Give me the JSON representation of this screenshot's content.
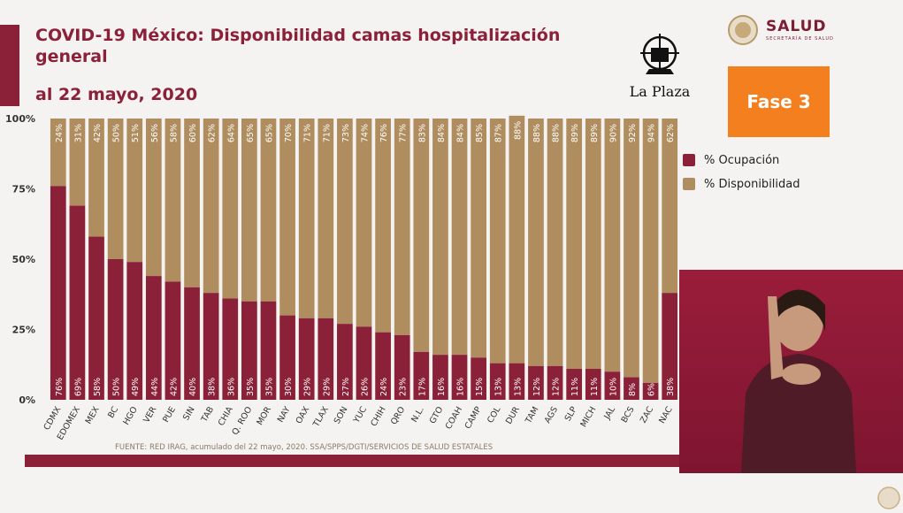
{
  "header": {
    "title": "COVID-19 México: Disponibilidad camas hospitalización general",
    "subtitle": "al 22 mayo, 2020"
  },
  "branding": {
    "salud_text": "SALUD",
    "salud_subtext": "SECRETARÍA DE SALUD",
    "la_plaza_text": "La Plaza",
    "phase_label": "Fase 3"
  },
  "colors": {
    "ocupacion": "#8b2139",
    "disponibilidad": "#b08d5e",
    "phase_badge": "#f47f1f"
  },
  "chart_data": {
    "type": "bar",
    "stacked": true,
    "percent": true,
    "categories": [
      "CDMX",
      "EDOMEX",
      "MEX",
      "BC",
      "HGO",
      "VER",
      "PUE",
      "SIN",
      "TAB",
      "CHIA",
      "Q. ROO",
      "MOR",
      "NAY",
      "OAX",
      "TLAX",
      "SON",
      "YUC",
      "CHIH",
      "QRO",
      "N.L.",
      "GTO",
      "COAH",
      "CAMP",
      "COL",
      "DUR",
      "TAM",
      "AGS",
      "SLP",
      "MICH",
      "JAL",
      "BCS",
      "ZAC",
      "NAC"
    ],
    "series": [
      {
        "name": "% Ocupación",
        "values": [
          76,
          69,
          58,
          50,
          49,
          44,
          42,
          40,
          38,
          36,
          35,
          35,
          30,
          29,
          29,
          27,
          26,
          24,
          23,
          17,
          16,
          16,
          15,
          13,
          13,
          12,
          12,
          11,
          11,
          10,
          8,
          6,
          38
        ]
      },
      {
        "name": "% Disponibilidad",
        "values": [
          24,
          31,
          42,
          50,
          51,
          56,
          58,
          60,
          62,
          64,
          65,
          65,
          70,
          71,
          71,
          73,
          74,
          76,
          77,
          83,
          84,
          84,
          85,
          87,
          88,
          88,
          88,
          89,
          89,
          90,
          92,
          94,
          62
        ]
      }
    ],
    "ylim": [
      0,
      100
    ],
    "yticks": [
      "0%",
      "25%",
      "50%",
      "75%",
      "100%"
    ],
    "ytick_values": [
      0,
      25,
      50,
      75,
      100
    ],
    "legend_position": "right",
    "source": "FUENTE: RED IRAG, acumulado del 22 mayo, 2020.   SSA/SPPS/DGTI/SERVICIOS DE SALUD ESTATALES"
  }
}
